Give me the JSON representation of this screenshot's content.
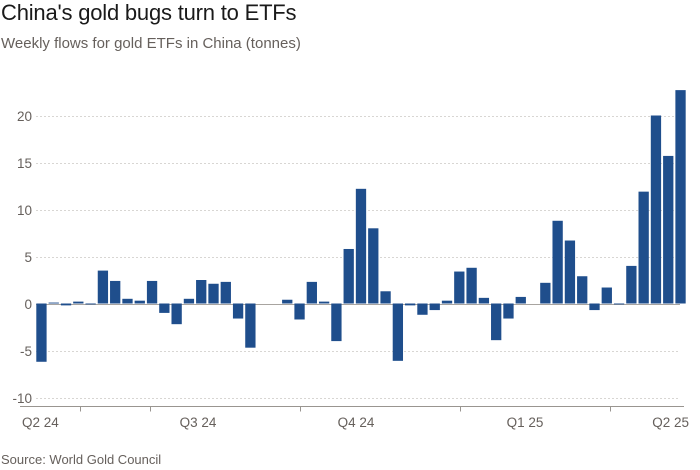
{
  "title": "China's gold bugs turn to ETFs",
  "subtitle": "Weekly flows for gold ETFs in China (tonnes)",
  "source": "Source: World Gold Council",
  "colors": {
    "bar": "#1f4e8c",
    "grid": "#d8d6d3",
    "zero": "#a8a4a0",
    "text": "#66605c"
  },
  "chart_data": {
    "type": "bar",
    "title": "China's gold bugs turn to ETFs",
    "subtitle": "Weekly flows for gold ETFs in China (tonnes)",
    "xlabel": "",
    "ylabel": "",
    "ylim": [
      -10,
      23
    ],
    "yticks": [
      -10,
      -5,
      0,
      5,
      10,
      15,
      20
    ],
    "grid": true,
    "x_tick_labels": [
      "Q2 24",
      "Q3 24",
      "Q4 24",
      "Q1 25",
      "Q2 25"
    ],
    "values": [
      -6.2,
      0.1,
      -0.2,
      0.2,
      -0.1,
      3.5,
      2.4,
      0.5,
      0.3,
      2.4,
      -1.0,
      -2.2,
      0.5,
      2.5,
      2.1,
      2.3,
      -1.6,
      -4.7,
      0,
      0,
      0.4,
      -1.7,
      2.3,
      0.2,
      -4.0,
      5.8,
      12.2,
      8.0,
      1.3,
      -6.1,
      -0.2,
      -1.2,
      -0.7,
      0.3,
      3.4,
      3.8,
      0.6,
      -3.9,
      -1.6,
      0.7,
      0,
      2.2,
      8.8,
      6.7,
      2.9,
      -0.7,
      1.7,
      -0.1,
      4.0,
      11.9,
      20.0,
      15.7,
      22.7
    ]
  }
}
